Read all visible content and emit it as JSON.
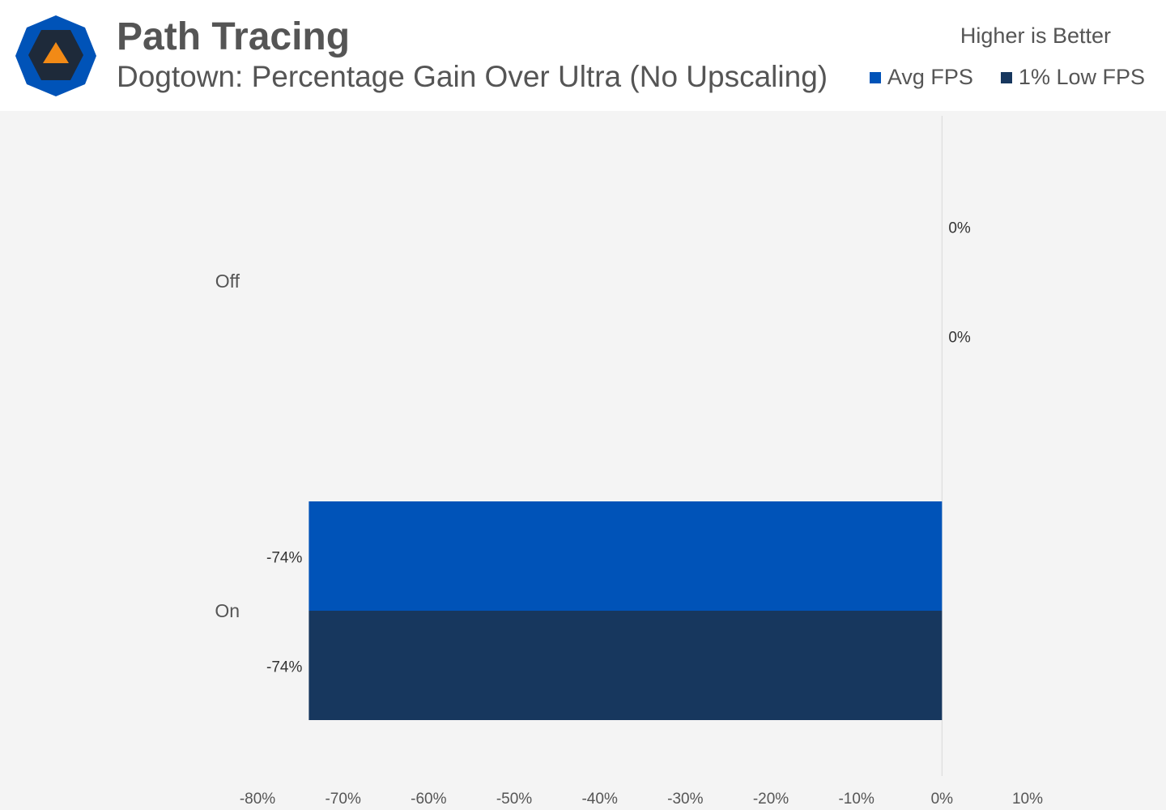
{
  "header": {
    "title": "Path Tracing",
    "subtitle": "Dogtown: Percentage Gain Over Ultra (No Upscaling)",
    "note": "Higher is Better",
    "legend": [
      {
        "label": "Avg FPS",
        "color": "#0053b8"
      },
      {
        "label": "1% Low FPS",
        "color": "#17375e"
      }
    ]
  },
  "logo": {
    "icon": "hexagon-triangle-logo-icon",
    "colors": [
      "#0053b8",
      "#1e2a3a",
      "#f28a16"
    ]
  },
  "chart_data": {
    "type": "bar",
    "orientation": "horizontal",
    "categories": [
      "Off",
      "On"
    ],
    "series": [
      {
        "name": "Avg FPS",
        "values": [
          0,
          -74
        ],
        "labels": [
          "0%",
          "-74%"
        ],
        "color": "#0053b8"
      },
      {
        "name": "1% Low FPS",
        "values": [
          0,
          -74
        ],
        "labels": [
          "0%",
          "-74%"
        ],
        "color": "#17375e"
      }
    ],
    "xlim": [
      -80,
      10
    ],
    "xticks": [
      "-80%",
      "-70%",
      "-60%",
      "-50%",
      "-40%",
      "-30%",
      "-20%",
      "-10%",
      "0%",
      "10%"
    ],
    "xtick_values": [
      -80,
      -70,
      -60,
      -50,
      -40,
      -30,
      -20,
      -10,
      0,
      10
    ],
    "grid": false
  }
}
